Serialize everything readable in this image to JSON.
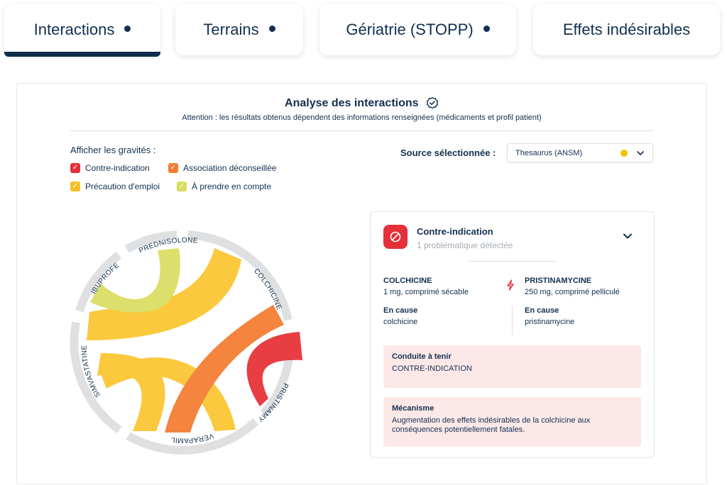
{
  "tabs": [
    {
      "label": "Interactions",
      "dot": true,
      "active": true
    },
    {
      "label": "Terrains",
      "dot": true,
      "active": false
    },
    {
      "label": "Gériatrie (STOPP)",
      "dot": true,
      "active": false
    },
    {
      "label": "Effets indésirables",
      "dot": false,
      "active": false
    }
  ],
  "analysis": {
    "title": "Analyse des interactions",
    "subtitle": "Attention : les résultats obtenus dépendent des informations renseignées (médicaments et profil patient)"
  },
  "severity": {
    "label": "Afficher les gravités :",
    "items": [
      {
        "label": "Contre-indication",
        "color": "#e5303a",
        "checked": true
      },
      {
        "label": "Association déconseillée",
        "color": "#f07c33",
        "checked": true
      },
      {
        "label": "Précaution d'emploi",
        "color": "#f6bf26",
        "checked": true
      },
      {
        "label": "À prendre en compte",
        "color": "#d7dd5c",
        "checked": true
      }
    ]
  },
  "source": {
    "label": "Source sélectionnée :",
    "selected": "Thesaurus (ANSM)",
    "status_color": "#f2c200"
  },
  "chord": {
    "drugs": [
      "PREDNISOLONE",
      "COLCHICINE",
      "PRISTINAMYCINE",
      "VERAPAMIL",
      "SIMVASTATINE",
      "IBUPROFENE"
    ]
  },
  "detail": {
    "title": "Contre-indication",
    "count": "1 problématique détectée",
    "drug1": {
      "name": "COLCHICINE",
      "dose": "1 mg, comprimé sécable",
      "cause_label": "En cause",
      "cause": "colchicine"
    },
    "drug2": {
      "name": "PRISTINAMYCINE",
      "dose": "250 mg, comprimé pelliculé",
      "cause_label": "En cause",
      "cause": "pristinamycine"
    },
    "conduite": {
      "title": "Conduite à tenir",
      "value": "CONTRE-INDICATION"
    },
    "mecanisme": {
      "title": "Mécanisme",
      "value": "Augmentation des effets indésirables de la colchicine aux conséquences potentiellement fatales."
    }
  }
}
